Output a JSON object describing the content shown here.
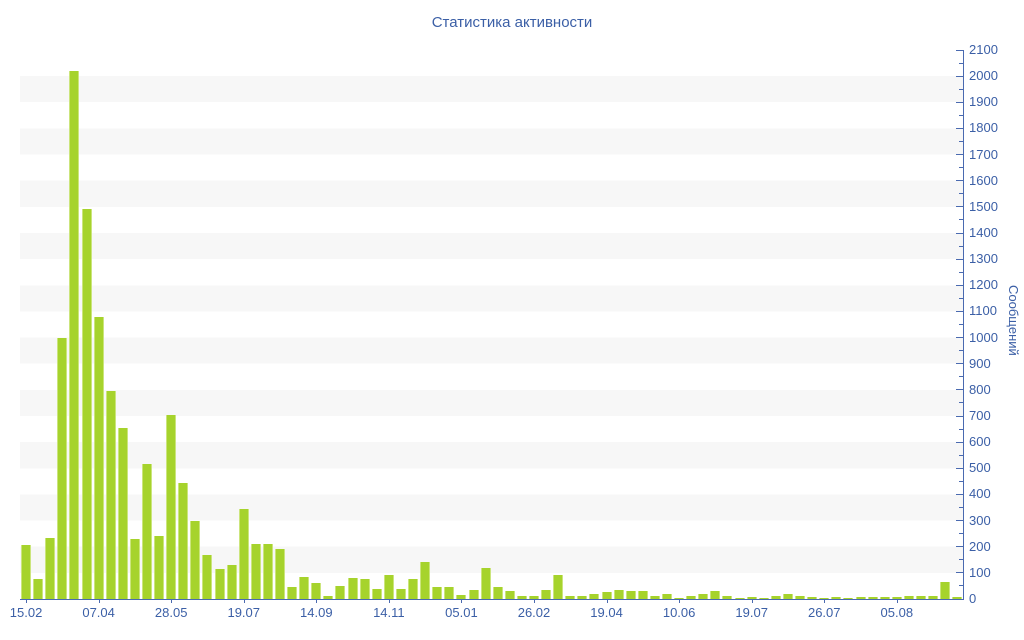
{
  "title": "Статистика активности",
  "colors": {
    "bar": "#a6d32c",
    "bar_edge": "#cbe57c",
    "axis": "#4a6ab0",
    "label": "#3b5fa6",
    "stripe": "#f7f7f7",
    "background": "#ffffff"
  },
  "chart_data": {
    "type": "bar",
    "title": "Статистика активности",
    "xlabel": "",
    "ylabel": "Сообщений",
    "ylim": [
      0,
      2100
    ],
    "y_tick_step": 100,
    "y_minor_tick_step": 50,
    "grid": "horizontal alternating stripe bands every 100",
    "legend": "none",
    "x_label_every": 6,
    "x_tick_labels": [
      "15.02",
      "07.04",
      "28.05",
      "19.07",
      "14.09",
      "14.11",
      "05.01",
      "26.02",
      "19.04",
      "10.06",
      "19.07",
      "26.07",
      "05.08"
    ],
    "values": [
      205,
      75,
      235,
      1000,
      2020,
      1490,
      1080,
      795,
      655,
      230,
      515,
      240,
      705,
      445,
      300,
      170,
      115,
      130,
      345,
      210,
      210,
      190,
      45,
      85,
      60,
      13,
      50,
      80,
      75,
      40,
      90,
      40,
      75,
      140,
      45,
      45,
      15,
      35,
      120,
      45,
      30,
      12,
      12,
      35,
      90,
      10,
      10,
      18,
      25,
      35,
      30,
      30,
      10,
      20,
      4,
      10,
      18,
      30,
      12,
      4,
      7,
      4,
      10,
      20,
      12,
      6,
      4,
      7,
      4,
      8,
      7,
      8,
      8,
      12,
      12,
      10,
      65,
      8
    ]
  }
}
